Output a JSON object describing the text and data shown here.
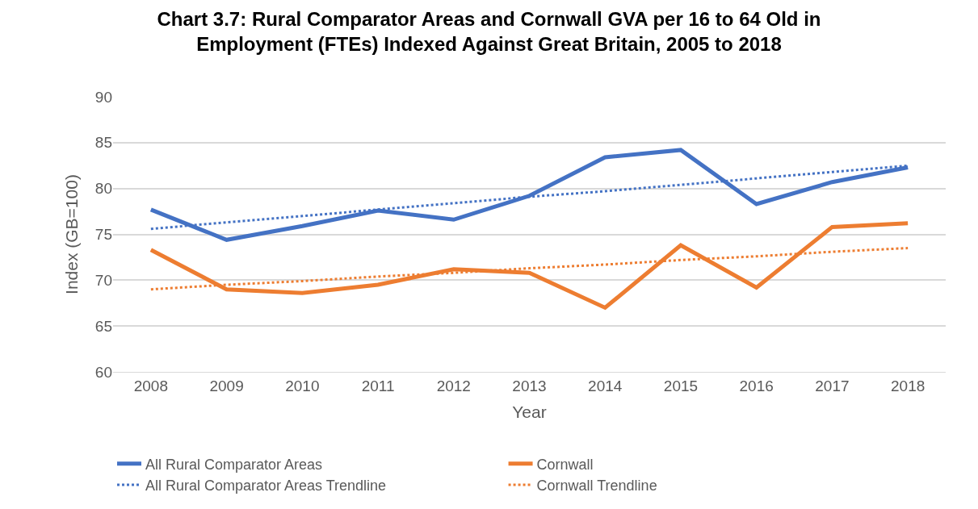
{
  "chart_data": {
    "type": "line",
    "title": "Chart 3.7: Rural Comparator Areas and Cornwall GVA per 16 to 64 Old in\nEmployment (FTEs) Indexed Against Great Britain, 2005 to 2018",
    "xlabel": "Year",
    "ylabel": "Index (GB=100)",
    "categories": [
      "2008",
      "2009",
      "2010",
      "2011",
      "2012",
      "2013",
      "2014",
      "2015",
      "2016",
      "2017",
      "2018"
    ],
    "series": [
      {
        "name": "All Rural Comparator Areas",
        "color": "#4472c4",
        "values": [
          77.7,
          74.4,
          75.9,
          77.6,
          76.6,
          79.2,
          83.4,
          84.2,
          78.3,
          80.7,
          82.3
        ]
      },
      {
        "name": "Cornwall",
        "color": "#ed7d31",
        "values": [
          73.3,
          69.0,
          68.6,
          69.5,
          71.2,
          70.8,
          67.0,
          73.8,
          69.2,
          75.8,
          76.2
        ]
      },
      {
        "name": "All Rural Comparator Areas Trendline",
        "color": "#4472c4",
        "values": [
          75.6,
          76.3,
          77.0,
          77.7,
          78.4,
          79.1,
          79.7,
          80.4,
          81.1,
          81.8,
          82.5
        ],
        "line_style": "dotted"
      },
      {
        "name": "Cornwall Trendline",
        "color": "#ed7d31",
        "values": [
          69.0,
          69.5,
          69.9,
          70.4,
          70.8,
          71.3,
          71.7,
          72.2,
          72.6,
          73.1,
          73.5
        ],
        "line_style": "dotted"
      }
    ],
    "ylim": [
      60,
      90
    ],
    "yticks": [
      60,
      65,
      70,
      75,
      80,
      85,
      90
    ],
    "grid": "y",
    "legend": "bottom",
    "marker": "none",
    "line_style": "solid"
  }
}
